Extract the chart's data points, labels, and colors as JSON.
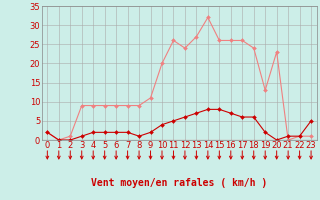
{
  "x": [
    0,
    1,
    2,
    3,
    4,
    5,
    6,
    7,
    8,
    9,
    10,
    11,
    12,
    13,
    14,
    15,
    16,
    17,
    18,
    19,
    20,
    21,
    22,
    23
  ],
  "rafales": [
    2,
    0,
    1,
    9,
    9,
    9,
    9,
    9,
    9,
    11,
    20,
    26,
    24,
    27,
    32,
    26,
    26,
    26,
    24,
    13,
    23,
    0,
    1,
    1
  ],
  "moyen": [
    2,
    0,
    0,
    1,
    2,
    2,
    2,
    2,
    1,
    2,
    4,
    5,
    6,
    7,
    8,
    8,
    7,
    6,
    6,
    2,
    0,
    1,
    1,
    5
  ],
  "color_rafales": "#f08080",
  "color_moyen": "#cc0000",
  "background": "#cceee8",
  "grid_color": "#aaaaaa",
  "xlabel": "Vent moyen/en rafales ( km/h )",
  "ylim": [
    0,
    35
  ],
  "yticks": [
    0,
    5,
    10,
    15,
    20,
    25,
    30,
    35
  ],
  "xlim": [
    -0.5,
    23.5
  ],
  "xticks": [
    0,
    1,
    2,
    3,
    4,
    5,
    6,
    7,
    8,
    9,
    10,
    11,
    12,
    13,
    14,
    15,
    16,
    17,
    18,
    19,
    20,
    21,
    22,
    23
  ],
  "xlabel_fontsize": 7,
  "tick_fontsize": 6,
  "arrow_color": "#cc0000",
  "marker_size": 2.0,
  "linewidth": 0.8
}
